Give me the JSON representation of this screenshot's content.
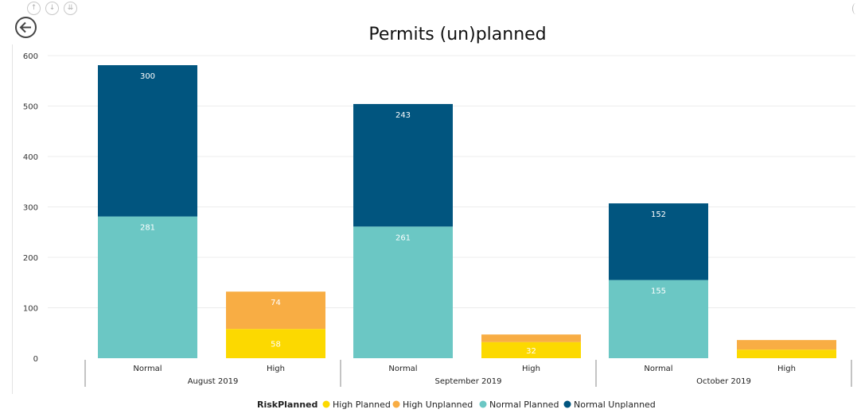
{
  "toolbar": {
    "icons": [
      "drill-up-icon",
      "drill-down-icon",
      "expand-hierarchy-icon"
    ],
    "back_icon": "back-arrow-icon"
  },
  "colors": {
    "high_planned": "#fcd900",
    "high_unplanned": "#f8ad44",
    "normal_planned": "#6bc7c4",
    "normal_unplanned": "#01557f"
  },
  "chart_data": {
    "type": "bar",
    "stacked": true,
    "title": "Permits (un)planned",
    "xlabel": "",
    "ylabel": "",
    "ylim": [
      0,
      600
    ],
    "yticks": [
      0,
      100,
      200,
      300,
      400,
      500,
      600
    ],
    "grid": true,
    "legend": {
      "title": "RiskPlanned",
      "position": "bottom",
      "items": [
        "High Planned",
        "High Unplanned",
        "Normal Planned",
        "Normal Unplanned"
      ]
    },
    "groups": [
      {
        "label": "August 2019",
        "bars": [
          {
            "label": "Normal",
            "segments": [
              {
                "series": "Normal Planned",
                "value": 281,
                "label": "281"
              },
              {
                "series": "Normal Unplanned",
                "value": 300,
                "label": "300"
              }
            ]
          },
          {
            "label": "High",
            "segments": [
              {
                "series": "High Planned",
                "value": 58,
                "label": "58"
              },
              {
                "series": "High Unplanned",
                "value": 74,
                "label": "74"
              }
            ]
          }
        ]
      },
      {
        "label": "September 2019",
        "bars": [
          {
            "label": "Normal",
            "segments": [
              {
                "series": "Normal Planned",
                "value": 261,
                "label": "261"
              },
              {
                "series": "Normal Unplanned",
                "value": 243,
                "label": "243"
              }
            ]
          },
          {
            "label": "High",
            "segments": [
              {
                "series": "High Planned",
                "value": 32,
                "label": "32"
              },
              {
                "series": "High Unplanned",
                "value": 15,
                "label": ""
              }
            ]
          }
        ]
      },
      {
        "label": "October 2019",
        "bars": [
          {
            "label": "Normal",
            "segments": [
              {
                "series": "Normal Planned",
                "value": 155,
                "label": "155"
              },
              {
                "series": "Normal Unplanned",
                "value": 152,
                "label": "152"
              }
            ]
          },
          {
            "label": "High",
            "segments": [
              {
                "series": "High Planned",
                "value": 17,
                "label": ""
              },
              {
                "series": "High Unplanned",
                "value": 19,
                "label": ""
              }
            ]
          }
        ]
      }
    ]
  }
}
